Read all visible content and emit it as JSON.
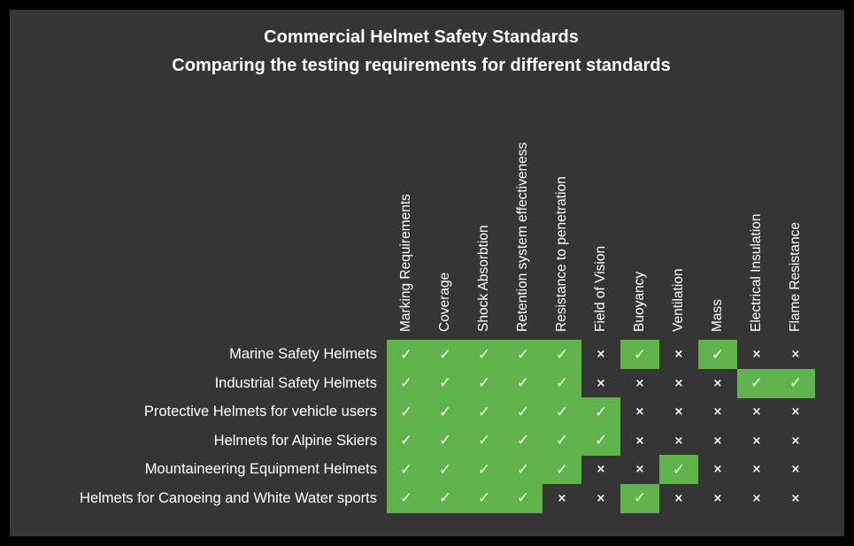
{
  "chart_data": {
    "type": "table",
    "title": "Commercial Helmet Safety Standards",
    "subtitle": "Comparing the testing requirements for different standards",
    "columns": [
      "Marking Requirements",
      "Coverage",
      "Shock Absorbtion",
      "Retention system effectiveness",
      "Resistance to penetration",
      "Field of Vision",
      "Buoyancy",
      "Ventilation",
      "Mass",
      "Electrical Insulation",
      "Flame Resistance"
    ],
    "rows": [
      "Marine Safety Helmets",
      "Industrial Safety Helmets",
      "Protective Helmets for vehicle users",
      "Helmets for Alpine Skiers",
      "Mountaineering Equipment Helmets",
      "Helmets for Canoeing and White Water sports"
    ],
    "values": [
      [
        1,
        1,
        1,
        1,
        1,
        0,
        1,
        0,
        1,
        0,
        0
      ],
      [
        1,
        1,
        1,
        1,
        1,
        0,
        0,
        0,
        0,
        1,
        1
      ],
      [
        1,
        1,
        1,
        1,
        1,
        1,
        0,
        0,
        0,
        0,
        0
      ],
      [
        1,
        1,
        1,
        1,
        1,
        1,
        0,
        0,
        0,
        0,
        0
      ],
      [
        1,
        1,
        1,
        1,
        1,
        0,
        0,
        1,
        0,
        0,
        0
      ],
      [
        1,
        1,
        1,
        1,
        0,
        0,
        1,
        0,
        0,
        0,
        0
      ]
    ],
    "symbols": {
      "yes": "✓",
      "no": "×"
    },
    "colors": {
      "yes": "#5eb44b",
      "background": "#353535",
      "frame": "#000000",
      "text": "#ffffff"
    }
  }
}
